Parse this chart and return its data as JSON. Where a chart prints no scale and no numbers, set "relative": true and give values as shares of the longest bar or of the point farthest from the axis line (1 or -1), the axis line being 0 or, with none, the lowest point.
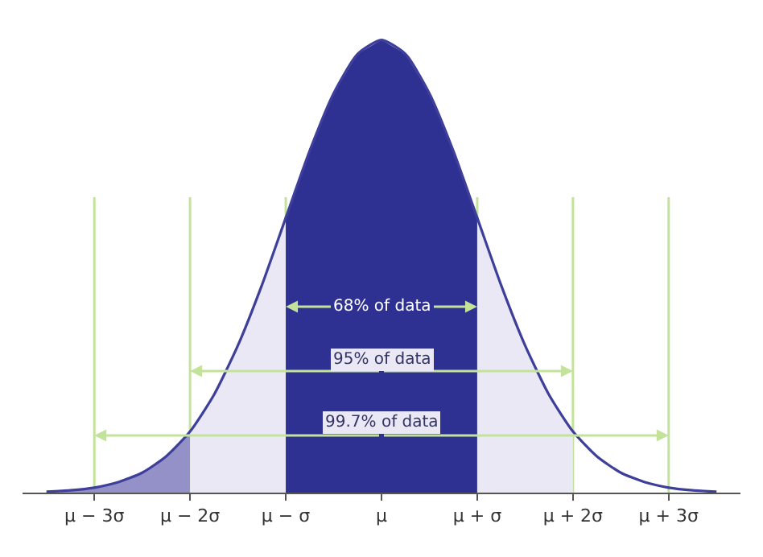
{
  "chart_data": {
    "type": "area",
    "relative": true,
    "xlim": [
      -3.75,
      3.75
    ],
    "xticks": [
      {
        "value": -3,
        "label": "μ − 3σ"
      },
      {
        "value": -2,
        "label": "μ − 2σ"
      },
      {
        "value": -1,
        "label": "μ − σ"
      },
      {
        "value": 0,
        "label": "μ"
      },
      {
        "value": 1,
        "label": "μ + σ"
      },
      {
        "value": 2,
        "label": "μ + 2σ"
      },
      {
        "value": 3,
        "label": "μ + 3σ"
      }
    ],
    "tick_labels": "x",
    "grid": false,
    "marker": "none",
    "line_style": "solid",
    "series": [
      {
        "color": "#9490c8",
        "x": [
          -3.5,
          -3.25,
          -3,
          -2.75,
          -2.5,
          -2.25,
          -2
        ],
        "values": [
          0.002,
          0.005,
          0.011,
          0.023,
          0.044,
          0.08,
          0.135
        ]
      },
      {
        "color": "#e9e8f4",
        "x": [
          -2,
          -1.75,
          -1.5,
          -1.25,
          -1
        ],
        "values": [
          0.135,
          0.216,
          0.325,
          0.458,
          0.607
        ]
      },
      {
        "color": "#2e3192",
        "x": [
          -1,
          -0.75,
          -0.5,
          -0.25,
          0,
          0.25,
          0.5,
          0.75,
          1
        ],
        "values": [
          0.607,
          0.755,
          0.882,
          0.969,
          1,
          0.969,
          0.882,
          0.755,
          0.607
        ]
      },
      {
        "color": "#e9e8f4",
        "x": [
          1,
          1.25,
          1.5,
          1.75,
          2
        ],
        "values": [
          0.607,
          0.458,
          0.325,
          0.216,
          0.135
        ]
      },
      {
        "type": "line",
        "color": "#3d3f9a",
        "x": [
          -3.5,
          -3.25,
          -3,
          -2.75,
          -2.5,
          -2.25,
          -2,
          -1.75,
          -1.5,
          -1.25,
          -1,
          -0.75,
          -0.5,
          -0.25,
          0,
          0.25,
          0.5,
          0.75,
          1,
          1.25,
          1.5,
          1.75,
          2,
          2.25,
          2.5,
          2.75,
          3,
          3.25,
          3.5
        ],
        "values": [
          0.002,
          0.005,
          0.011,
          0.023,
          0.044,
          0.08,
          0.135,
          0.216,
          0.325,
          0.458,
          0.607,
          0.755,
          0.882,
          0.969,
          1,
          0.969,
          0.882,
          0.755,
          0.607,
          0.458,
          0.325,
          0.216,
          0.135,
          0.08,
          0.044,
          0.023,
          0.011,
          0.005,
          0.002
        ]
      }
    ],
    "ref_lines": [
      {
        "axis": "x",
        "value": -3,
        "color": "#c3e39a"
      },
      {
        "axis": "x",
        "value": -2,
        "color": "#c3e39a"
      },
      {
        "axis": "x",
        "value": -1,
        "color": "#c3e39a"
      },
      {
        "axis": "x",
        "value": 1,
        "color": "#c3e39a"
      },
      {
        "axis": "x",
        "value": 2,
        "color": "#c3e39a"
      },
      {
        "axis": "x",
        "value": 3,
        "color": "#c3e39a"
      }
    ],
    "annotations": [
      "68% of data",
      "95% of data",
      "99.7% of data"
    ]
  }
}
